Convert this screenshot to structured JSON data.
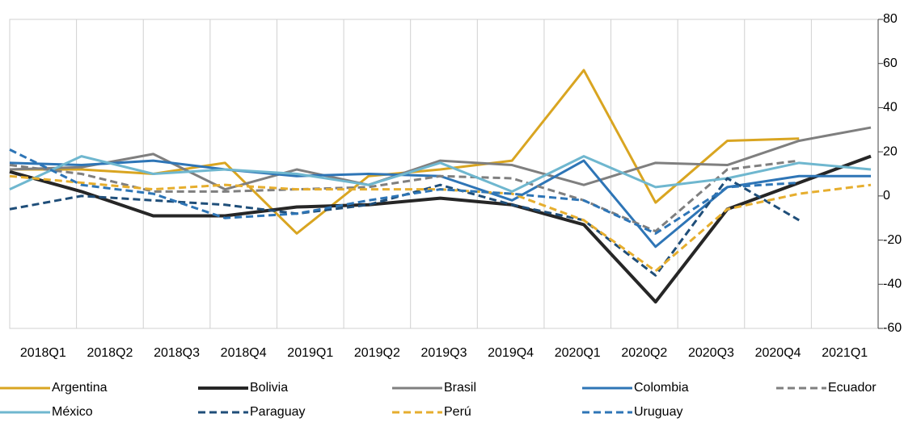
{
  "chart_data": {
    "type": "line",
    "categories": [
      "2018Q1",
      "2018Q2",
      "2018Q3",
      "2018Q4",
      "2019Q1",
      "2019Q2",
      "2019Q3",
      "2019Q4",
      "2020Q1",
      "2020Q2",
      "2020Q3",
      "2020Q4",
      "2021Q1"
    ],
    "series": [
      {
        "name": "Argentina",
        "color": "#d9a521",
        "dash": false,
        "values": [
          12,
          12,
          10,
          15,
          -17,
          9,
          12,
          16,
          57,
          -3,
          25,
          26,
          null
        ]
      },
      {
        "name": "Bolivia",
        "color": "#262626",
        "dash": false,
        "values": [
          11,
          2,
          -9,
          -9,
          -5,
          -4,
          -1,
          -4,
          -13,
          -48,
          -6,
          6,
          18
        ]
      },
      {
        "name": "Brasil",
        "color": "#7f7f7f",
        "dash": false,
        "values": [
          12,
          13,
          19,
          3,
          12,
          5,
          16,
          14,
          5,
          15,
          14,
          25,
          31
        ]
      },
      {
        "name": "Colombia",
        "color": "#2e75b6",
        "dash": false,
        "values": [
          15,
          14,
          16,
          12,
          9,
          10,
          9,
          -2,
          16,
          -23,
          4,
          9,
          9
        ]
      },
      {
        "name": "Ecuador",
        "color": "#7f7f7f",
        "dash": true,
        "values": [
          14,
          10,
          2,
          2,
          3,
          4,
          9,
          8,
          -2,
          -16,
          12,
          16,
          null
        ]
      },
      {
        "name": "México",
        "color": "#6fb7cf",
        "dash": false,
        "values": [
          3,
          18,
          10,
          12,
          10,
          5,
          15,
          2,
          18,
          4,
          8,
          15,
          12
        ]
      },
      {
        "name": "Paraguay",
        "color": "#1f4e79",
        "dash": true,
        "values": [
          -6,
          0,
          -2,
          -4,
          -8,
          -4,
          5,
          -4,
          -11,
          -36,
          8,
          -11,
          null
        ]
      },
      {
        "name": "Perú",
        "color": "#e6ae2e",
        "dash": true,
        "values": [
          9,
          6,
          3,
          5,
          3,
          3,
          3,
          1,
          -11,
          -34,
          -6,
          1,
          5
        ]
      },
      {
        "name": "Uruguay",
        "color": "#2e75b6",
        "dash": true,
        "values": [
          21,
          5,
          1,
          -10,
          -8,
          -2,
          3,
          1,
          -2,
          -17,
          4,
          6,
          null
        ]
      }
    ],
    "ylim": [
      -60,
      80
    ],
    "yticks": [
      80,
      60,
      40,
      20,
      0,
      -20,
      -40,
      -60
    ],
    "grid": true
  }
}
